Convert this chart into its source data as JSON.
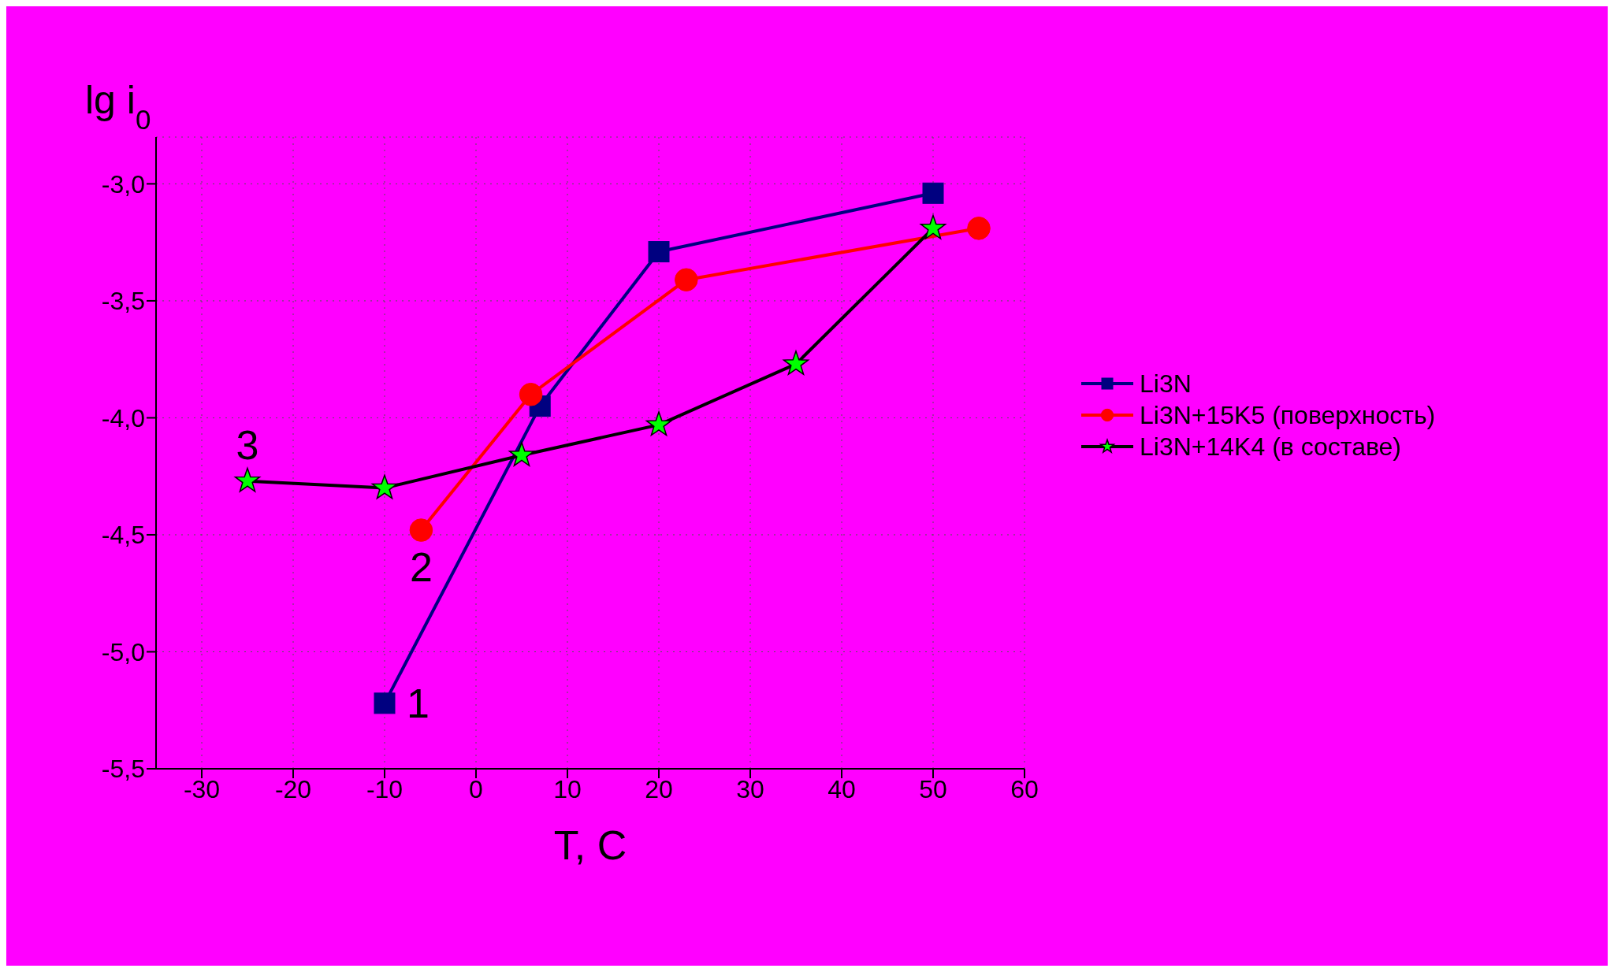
{
  "chart_data": {
    "type": "line",
    "xlabel": "T, C",
    "ylabel": "lg i$_{0}$",
    "xlim": [
      -35,
      60
    ],
    "xticks": [
      -30,
      -20,
      -10,
      0,
      10,
      20,
      30,
      40,
      50,
      60
    ],
    "ylim": [
      -5.5,
      -2.8
    ],
    "yticks": [
      {
        "value": -5.5,
        "label": "-5,5"
      },
      {
        "value": -5.0,
        "label": "-5,0"
      },
      {
        "value": -4.5,
        "label": "-4,5"
      },
      {
        "value": -4.0,
        "label": "-4,0"
      },
      {
        "value": -3.5,
        "label": "-3,5"
      },
      {
        "value": -3.0,
        "label": "-3,0"
      }
    ],
    "grid": true,
    "legend": "right",
    "line_style": "solid",
    "series": [
      {
        "name": "Li3N",
        "color": "#000080",
        "marker": "square",
        "x": [
          -10,
          7,
          20,
          50
        ],
        "values": [
          -5.22,
          -3.95,
          -3.29,
          -3.04
        ]
      },
      {
        "name": "Li3N+15K5 (поверхность)",
        "color": "#ff0000",
        "marker": "circle",
        "x": [
          -6,
          6,
          23,
          55
        ],
        "values": [
          -4.48,
          -3.9,
          -3.41,
          -3.19
        ]
      },
      {
        "name": "Li3N+14K4 (в составе)",
        "color": "#00ff00",
        "marker": "star",
        "x": [
          -25,
          -10,
          5,
          20,
          35,
          50
        ],
        "values": [
          -4.27,
          -4.3,
          -4.16,
          -4.03,
          -3.77,
          -3.19
        ]
      }
    ],
    "annotations": [
      {
        "text": "1",
        "x": -10,
        "y": -5.22
      },
      {
        "text": "2",
        "x": -6,
        "y": -4.48
      },
      {
        "text": "3",
        "x": -25,
        "y": -4.27
      }
    ]
  }
}
